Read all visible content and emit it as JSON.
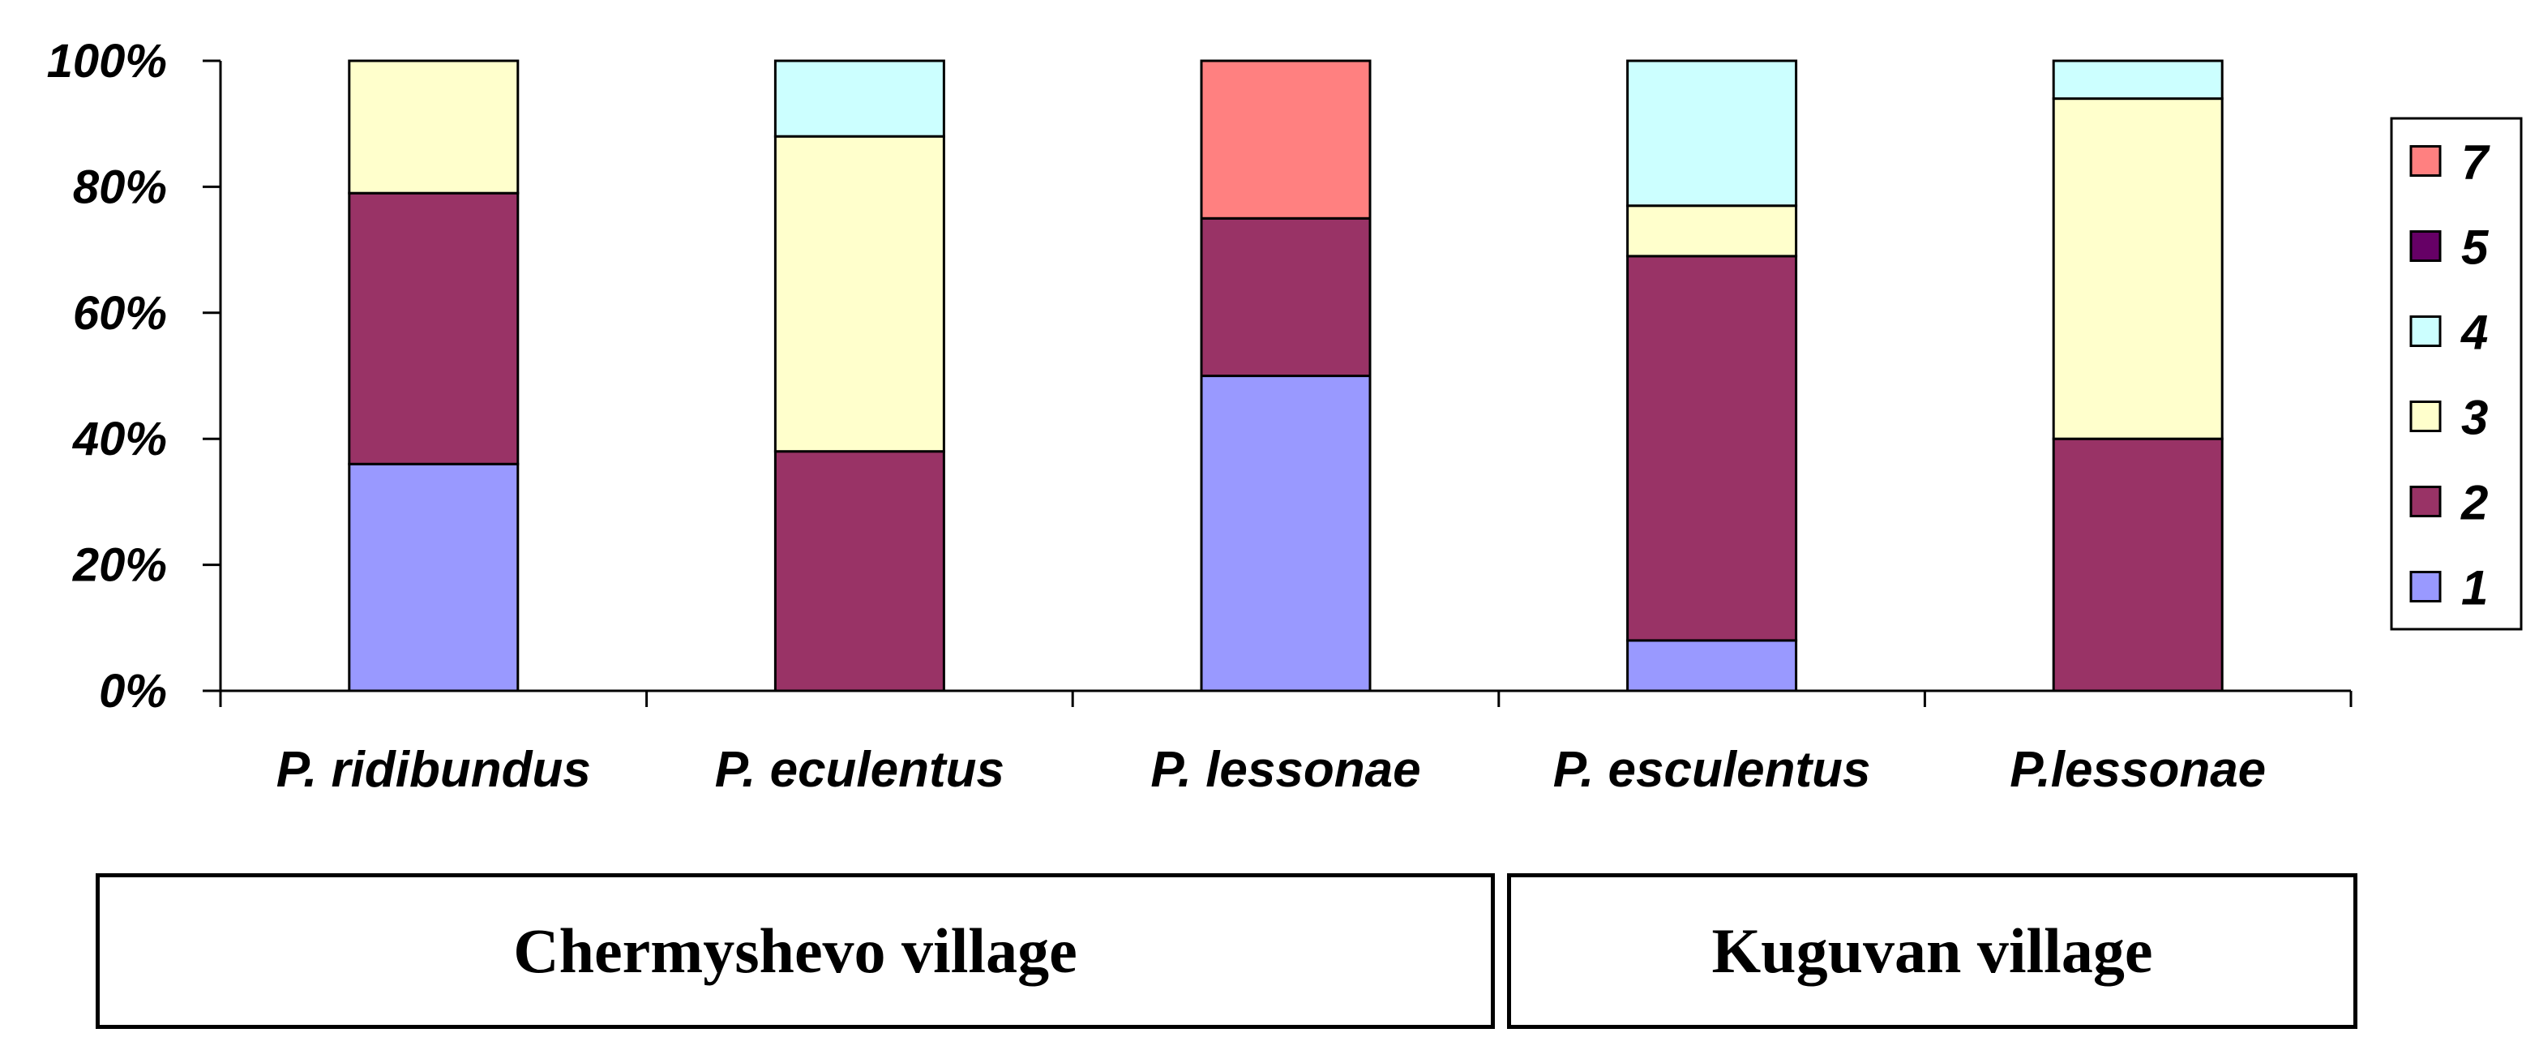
{
  "chart_data": {
    "type": "bar",
    "stacked": true,
    "percent": true,
    "categories": [
      "P. ridibundus",
      "P. eculentus",
      "P. lessonae",
      "P. esculentus",
      "P.lessonae"
    ],
    "ylim": [
      0,
      100
    ],
    "yticks": [
      "0%",
      "20%",
      "40%",
      "60%",
      "80%",
      "100%"
    ],
    "series": [
      {
        "name": "1",
        "color": "#9999ff",
        "values": [
          36,
          0,
          50,
          8,
          0
        ]
      },
      {
        "name": "2",
        "color": "#993366",
        "values": [
          43,
          38,
          25,
          61,
          40
        ]
      },
      {
        "name": "3",
        "color": "#ffffcc",
        "values": [
          21,
          50,
          0,
          8,
          54
        ]
      },
      {
        "name": "4",
        "color": "#ccffff",
        "values": [
          0,
          12,
          0,
          23,
          6
        ]
      },
      {
        "name": "5",
        "color": "#660066",
        "values": [
          0,
          0,
          0,
          0,
          0
        ]
      },
      {
        "name": "7",
        "color": "#ff8080",
        "values": [
          0,
          0,
          25,
          0,
          0
        ]
      }
    ],
    "legend_order": [
      "7",
      "5",
      "4",
      "3",
      "2",
      "1"
    ],
    "legend_position": "right",
    "grid": false
  },
  "groups": [
    {
      "label": "Chermyshevo village"
    },
    {
      "label": "Kuguvan village"
    }
  ]
}
